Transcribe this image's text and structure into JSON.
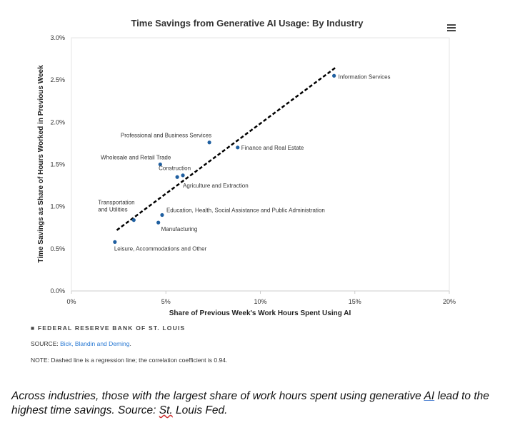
{
  "chart_data": {
    "type": "scatter",
    "title": "Time Savings from Generative AI Usage: By Industry",
    "xlabel": "Share of Previous Week's Work Hours Spent Using AI",
    "ylabel": "Time Savings as Share of Hours Worked in Previous Week",
    "xlim": [
      0,
      20
    ],
    "ylim": [
      0,
      3.0
    ],
    "xticks": [
      "0%",
      "5%",
      "10%",
      "15%",
      "20%"
    ],
    "yticks": [
      "0.0%",
      "0.5%",
      "1.0%",
      "1.5%",
      "2.0%",
      "2.5%",
      "3.0%"
    ],
    "color": "#1f5fa0",
    "points": [
      {
        "label": "Information Services",
        "x": 13.9,
        "y": 2.55
      },
      {
        "label": "Professional and Business Services",
        "x": 7.3,
        "y": 1.76
      },
      {
        "label": "Finance and Real Estate",
        "x": 8.8,
        "y": 1.7
      },
      {
        "label": "Wholesale and Retail Trade",
        "x": 4.7,
        "y": 1.5
      },
      {
        "label": "Construction",
        "x": 5.6,
        "y": 1.35
      },
      {
        "label": "Agriculture and Extraction",
        "x": 5.9,
        "y": 1.37
      },
      {
        "label": "Transportation and Utilities",
        "x": 3.3,
        "y": 0.84
      },
      {
        "label": "Education, Health, Social Assistance and Public Administration",
        "x": 4.8,
        "y": 0.9
      },
      {
        "label": "Manufacturing",
        "x": 4.6,
        "y": 0.81
      },
      {
        "label": "Leisure, Accommodations and Other",
        "x": 2.3,
        "y": 0.58
      }
    ],
    "regression_line": {
      "x": [
        2.4,
        14.0
      ],
      "y": [
        0.72,
        2.65
      ],
      "style": "dashed"
    }
  },
  "footer": {
    "brand": "FEDERAL RESERVE BANK OF ST. LOUIS",
    "source_label": "SOURCE: ",
    "source_link": "Bick, Blandin and Deming",
    "source_end": ".",
    "note": "NOTE: Dashed line is a regression line; the correlation coefficient is 0.94."
  },
  "caption": {
    "part1": "Across industries, those with the largest share of work hours spent using generative ",
    "ai": "AI",
    "part2": " lead to the highest time savings. Source: ",
    "stl": "St.",
    "part3": " Louis Fed."
  },
  "menu_icon": "hamburger-menu-icon"
}
